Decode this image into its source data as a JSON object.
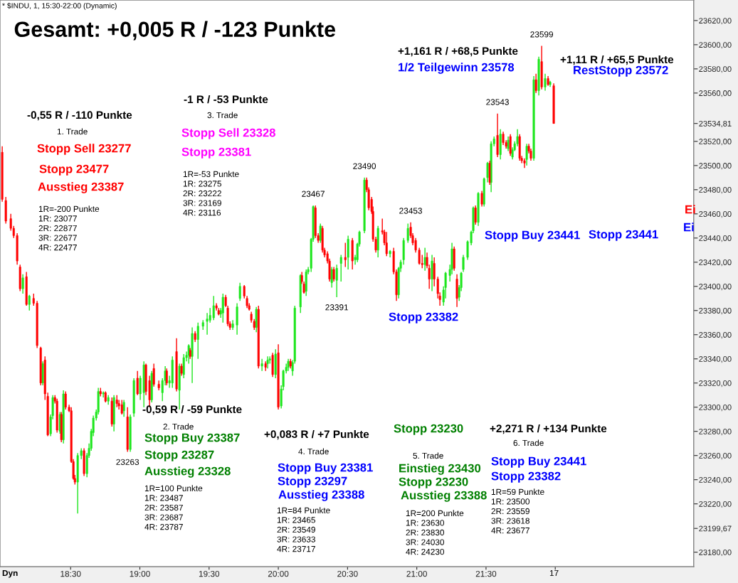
{
  "chart_data": {
    "type": "candlestick",
    "title": "Gesamt: +0,005 R / -123 Punkte",
    "subtitle": "* $INDU, 1, 15:30-22:00 (Dynamic)",
    "xlim": [
      17.99,
      23.0
    ],
    "ylim": [
      23168,
      23637
    ],
    "xticks": [
      {
        "value": 18.5,
        "label": "18:30"
      },
      {
        "value": 19,
        "label": "19:00"
      },
      {
        "value": 19.5,
        "label": "19:30"
      },
      {
        "value": 20,
        "label": "20:00"
      },
      {
        "value": 20.5,
        "label": "20:30"
      },
      {
        "value": 21,
        "label": "21:00"
      },
      {
        "value": 21.5,
        "label": "21:30"
      },
      {
        "value": 22,
        "label": null
      }
    ],
    "yticks": [
      {
        "value": 23180,
        "label": "23180,00"
      },
      {
        "value": 23199.67,
        "label": "23199,67"
      },
      {
        "value": 23220,
        "label": "23220,00"
      },
      {
        "value": 23240,
        "label": "23240,00"
      },
      {
        "value": 23260,
        "label": "23260,00"
      },
      {
        "value": 23280,
        "label": "23280,00"
      },
      {
        "value": 23300,
        "label": "23300,00"
      },
      {
        "value": 23320,
        "label": "23320,00"
      },
      {
        "value": 23340,
        "label": "23340,00"
      },
      {
        "value": 23360,
        "label": "23360,00"
      },
      {
        "value": 23380,
        "label": "23380,00"
      },
      {
        "value": 23400,
        "label": "23400,00"
      },
      {
        "value": 23420,
        "label": "23420,00"
      },
      {
        "value": 23440,
        "label": "23440,00"
      },
      {
        "value": 23460,
        "label": "23460,00"
      },
      {
        "value": 23480,
        "label": "23480,00"
      },
      {
        "value": 23500,
        "label": "23500,00"
      },
      {
        "value": 23520,
        "label": "23520,00"
      },
      {
        "value": 23534.81,
        "label": "23534,81"
      },
      {
        "value": 23560,
        "label": "23560,00"
      },
      {
        "value": 23580,
        "label": "23580,00"
      },
      {
        "value": 23600,
        "label": "23600,00"
      },
      {
        "value": 23620,
        "label": "23620,00"
      }
    ],
    "series": [
      {
        "color": "#1ee61e",
        "x": [
          18.155,
          18.202,
          18.299,
          18.356,
          18.371,
          18.423,
          18.448,
          18.551,
          18.577,
          18.618,
          18.633,
          18.649,
          18.664,
          18.685,
          18.7,
          18.736,
          18.772,
          18.813,
          18.885,
          18.931,
          18.957,
          19.003,
          19.029,
          19.086,
          19.163,
          19.183,
          19.214,
          19.235,
          19.286,
          19.317,
          19.337,
          19.353,
          19.378,
          19.42,
          19.456,
          19.486,
          19.507,
          19.533,
          19.584,
          19.6,
          19.671,
          19.702,
          19.723,
          19.841,
          19.882,
          19.923,
          19.939,
          19.98,
          20.021,
          20.036,
          20.057,
          20.072,
          20.103,
          20.119,
          20.16,
          20.201,
          20.216,
          20.237,
          20.252,
          20.304,
          20.386,
          20.422,
          20.453,
          20.504,
          20.555,
          20.571,
          20.586,
          20.622,
          20.72,
          20.807,
          20.869,
          20.884,
          20.905,
          20.936,
          21.059,
          21.11,
          21.193,
          21.208,
          21.239,
          21.254,
          21.306,
          21.321,
          21.336,
          21.367,
          21.393,
          21.408,
          21.444,
          21.486,
          21.511,
          21.537,
          21.558,
          21.604,
          21.66,
          21.691,
          21.707,
          21.727,
          21.794,
          21.845,
          21.881,
          21.927,
          21.963
        ],
        "ohlc": [
          [
            23398,
            23410,
            23394,
            23407
          ],
          [
            23385,
            23393,
            23380,
            23392
          ],
          [
            23320,
            23338,
            23318,
            23336
          ],
          [
            23278,
            23294,
            23276,
            23292
          ],
          [
            23293,
            23310,
            23290,
            23308
          ],
          [
            23280,
            23296,
            23278,
            23294
          ],
          [
            23273,
            23314,
            23270,
            23311
          ],
          [
            23238,
            23262,
            23212,
            23260
          ],
          [
            23260,
            23266,
            23257,
            23264
          ],
          [
            23245,
            23262,
            23242,
            23260
          ],
          [
            23260,
            23270,
            23258,
            23266
          ],
          [
            23266,
            23282,
            23264,
            23280
          ],
          [
            23279,
            23293,
            23276,
            23291
          ],
          [
            23291,
            23298,
            23289,
            23296
          ],
          [
            23296,
            23316,
            23294,
            23313
          ],
          [
            23311,
            23313,
            23308,
            23312
          ],
          [
            23305,
            23310,
            23302,
            23308
          ],
          [
            23286,
            23310,
            23280,
            23308
          ],
          [
            23297,
            23306,
            23292,
            23304
          ],
          [
            23265,
            23294,
            23263,
            23292
          ],
          [
            23295,
            23324,
            23292,
            23322
          ],
          [
            23311,
            23326,
            23306,
            23324
          ],
          [
            23312,
            23338,
            23300,
            23335
          ],
          [
            23306,
            23330,
            23304,
            23328
          ],
          [
            23312,
            23324,
            23305,
            23322
          ],
          [
            23322,
            23334,
            23318,
            23330
          ],
          [
            23320,
            23326,
            23316,
            23322
          ],
          [
            23320,
            23342,
            23316,
            23339
          ],
          [
            23314,
            23336,
            23298,
            23334
          ],
          [
            23327,
            23344,
            23324,
            23341
          ],
          [
            23341,
            23346,
            23338,
            23343
          ],
          [
            23343,
            23352,
            23336,
            23351
          ],
          [
            23342,
            23366,
            23320,
            23361
          ],
          [
            23356,
            23370,
            23340,
            23367
          ],
          [
            23367,
            23372,
            23364,
            23370
          ],
          [
            23371,
            23378,
            23360,
            23373
          ],
          [
            23372,
            23382,
            23370,
            23376
          ],
          [
            23374,
            23392,
            23372,
            23384
          ],
          [
            23377,
            23382,
            23374,
            23380
          ],
          [
            23378,
            23394,
            23370,
            23391
          ],
          [
            23366,
            23372,
            23364,
            23369
          ],
          [
            23368,
            23386,
            23360,
            23383
          ],
          [
            23390,
            23403,
            23388,
            23400
          ],
          [
            23366,
            23383,
            23362,
            23381
          ],
          [
            23334,
            23340,
            23330,
            23336
          ],
          [
            23336,
            23342,
            23332,
            23339
          ],
          [
            23339,
            23342,
            23336,
            23340
          ],
          [
            23327,
            23348,
            23324,
            23344
          ],
          [
            23301,
            23318,
            23299,
            23315
          ],
          [
            23317,
            23331,
            23314,
            23330
          ],
          [
            23330,
            23336,
            23328,
            23333
          ],
          [
            23333,
            23340,
            23330,
            23338
          ],
          [
            23330,
            23339,
            23326,
            23337
          ],
          [
            23338,
            23384,
            23336,
            23382
          ],
          [
            23383,
            23410,
            23378,
            23409
          ],
          [
            23396,
            23414,
            23392,
            23412
          ],
          [
            23412,
            23416,
            23410,
            23414
          ],
          [
            23415,
            23440,
            23412,
            23439
          ],
          [
            23439,
            23467,
            23437,
            23466
          ],
          [
            23438,
            23452,
            23436,
            23450
          ],
          [
            23403,
            23416,
            23399,
            23414
          ],
          [
            23405,
            23418,
            23391,
            23415
          ],
          [
            23419,
            23426,
            23404,
            23424
          ],
          [
            23424,
            23442,
            23414,
            23439
          ],
          [
            23422,
            23426,
            23418,
            23424
          ],
          [
            23422,
            23436,
            23420,
            23435
          ],
          [
            23435,
            23446,
            23433,
            23445
          ],
          [
            23446,
            23490,
            23444,
            23488
          ],
          [
            23430,
            23450,
            23424,
            23448
          ],
          [
            23427,
            23430,
            23424,
            23429
          ],
          [
            23393,
            23416,
            23390,
            23415
          ],
          [
            23415,
            23422,
            23412,
            23420
          ],
          [
            23422,
            23440,
            23418,
            23438
          ],
          [
            23438,
            23452,
            23436,
            23448
          ],
          [
            23418,
            23432,
            23413,
            23424
          ],
          [
            23406,
            23426,
            23396,
            23421
          ],
          [
            23387,
            23400,
            23384,
            23397
          ],
          [
            23399,
            23412,
            23390,
            23411
          ],
          [
            23409,
            23418,
            23404,
            23414
          ],
          [
            23414,
            23436,
            23410,
            23431
          ],
          [
            23391,
            23401,
            23388,
            23399
          ],
          [
            23399,
            23412,
            23396,
            23411
          ],
          [
            23414,
            23426,
            23412,
            23424
          ],
          [
            23424,
            23438,
            23422,
            23437
          ],
          [
            23436,
            23446,
            23434,
            23445
          ],
          [
            23446,
            23466,
            23444,
            23465
          ],
          [
            23453,
            23478,
            23450,
            23477
          ],
          [
            23468,
            23490,
            23466,
            23489
          ],
          [
            23490,
            23503,
            23486,
            23502
          ],
          [
            23486,
            23520,
            23478,
            23518
          ],
          [
            23518,
            23524,
            23516,
            23522
          ],
          [
            23509,
            23530,
            23505,
            23526
          ],
          [
            23514,
            23524,
            23512,
            23521
          ],
          [
            23507,
            23515,
            23505,
            23513
          ],
          [
            23513,
            23520,
            23512,
            23518
          ],
          [
            23518,
            23530,
            23516,
            23524
          ],
          [
            23505,
            23518,
            23500,
            23516
          ],
          [
            23506,
            23574,
            23504,
            23571
          ],
          [
            23562,
            23590,
            23558,
            23588
          ],
          [
            23565,
            23576,
            23562,
            23572
          ],
          [
            23567,
            23570,
            23565,
            23569
          ]
        ]
      },
      {
        "color": "#ff0000",
        "x": [
          18.006,
          18.032,
          18.068,
          18.089,
          18.114,
          18.135,
          18.181,
          18.233,
          18.258,
          18.284,
          18.315,
          18.335,
          18.387,
          18.402,
          18.433,
          18.464,
          18.489,
          18.505,
          18.52,
          18.531,
          18.597,
          18.716,
          18.752,
          18.798,
          18.834,
          18.849,
          18.87,
          18.911,
          18.983,
          19.044,
          19.07,
          19.101,
          19.137,
          19.194,
          19.265,
          19.301,
          19.363,
          19.399,
          19.553,
          19.569,
          19.62,
          19.635,
          19.651,
          19.754,
          19.774,
          19.79,
          19.805,
          19.826,
          19.857,
          19.908,
          19.959,
          20.0,
          20.088,
          20.17,
          20.185,
          20.268,
          20.288,
          20.319,
          20.334,
          20.355,
          20.37,
          20.401,
          20.484,
          20.535,
          20.638,
          20.653,
          20.674,
          20.684,
          20.704,
          20.751,
          20.766,
          20.782,
          20.833,
          20.853,
          20.956,
          20.971,
          20.992,
          21.018,
          21.039,
          21.074,
          21.09,
          21.126,
          21.152,
          21.167,
          21.27,
          21.29,
          21.424,
          21.47,
          21.527,
          21.583,
          21.624,
          21.645,
          21.676,
          21.743,
          21.758,
          21.778,
          21.809,
          21.824,
          21.861,
          21.902,
          21.948,
          21.989
        ],
        "ohlc": [
          [
            23511,
            23516,
            23470,
            23472
          ],
          [
            23471,
            23474,
            23452,
            23454
          ],
          [
            23456,
            23460,
            23446,
            23448
          ],
          [
            23448,
            23450,
            23440,
            23442
          ],
          [
            23442,
            23444,
            23418,
            23421
          ],
          [
            23416,
            23418,
            23396,
            23398
          ],
          [
            23408,
            23412,
            23384,
            23385
          ],
          [
            23390,
            23394,
            23384,
            23386
          ],
          [
            23386,
            23388,
            23349,
            23351
          ],
          [
            23349,
            23350,
            23318,
            23320
          ],
          [
            23339,
            23342,
            23306,
            23311
          ],
          [
            23309,
            23312,
            23276,
            23277
          ],
          [
            23308,
            23310,
            23303,
            23305
          ],
          [
            23305,
            23307,
            23279,
            23281
          ],
          [
            23294,
            23296,
            23271,
            23273
          ],
          [
            23311,
            23313,
            23298,
            23300
          ],
          [
            23300,
            23302,
            23296,
            23297
          ],
          [
            23297,
            23300,
            23254,
            23255
          ],
          [
            23255,
            23257,
            23240,
            23241
          ],
          [
            23241,
            23244,
            23236,
            23238
          ],
          [
            23264,
            23266,
            23243,
            23245
          ],
          [
            23313,
            23316,
            23309,
            23311
          ],
          [
            23312,
            23313,
            23304,
            23305
          ],
          [
            23305,
            23308,
            23284,
            23286
          ],
          [
            23306,
            23310,
            23300,
            23303
          ],
          [
            23303,
            23306,
            23298,
            23301
          ],
          [
            23302,
            23306,
            23294,
            23295
          ],
          [
            23292,
            23300,
            23263,
            23265
          ],
          [
            23324,
            23330,
            23310,
            23311
          ],
          [
            23335,
            23336,
            23310,
            23313
          ],
          [
            23322,
            23326,
            23300,
            23306
          ],
          [
            23332,
            23336,
            23317,
            23319
          ],
          [
            23319,
            23322,
            23314,
            23316
          ],
          [
            23330,
            23332,
            23318,
            23320
          ],
          [
            23346,
            23357,
            23313,
            23315
          ],
          [
            23334,
            23336,
            23326,
            23328
          ],
          [
            23347,
            23349,
            23340,
            23342
          ],
          [
            23361,
            23363,
            23354,
            23356
          ],
          [
            23384,
            23386,
            23380,
            23382
          ],
          [
            23380,
            23382,
            23376,
            23377
          ],
          [
            23391,
            23393,
            23383,
            23384
          ],
          [
            23382,
            23384,
            23367,
            23369
          ],
          [
            23369,
            23371,
            23364,
            23366
          ],
          [
            23400,
            23401,
            23390,
            23392
          ],
          [
            23390,
            23392,
            23382,
            23384
          ],
          [
            23384,
            23386,
            23380,
            23381
          ],
          [
            23377,
            23379,
            23370,
            23372
          ],
          [
            23371,
            23373,
            23364,
            23366
          ],
          [
            23381,
            23384,
            23332,
            23334
          ],
          [
            23336,
            23338,
            23330,
            23333
          ],
          [
            23343,
            23345,
            23325,
            23327
          ],
          [
            23345,
            23352,
            23298,
            23300
          ],
          [
            23338,
            23340,
            23332,
            23334
          ],
          [
            23409,
            23412,
            23402,
            23404
          ],
          [
            23402,
            23404,
            23394,
            23395
          ],
          [
            23465,
            23467,
            23440,
            23442
          ],
          [
            23442,
            23444,
            23436,
            23438
          ],
          [
            23448,
            23450,
            23428,
            23430
          ],
          [
            23430,
            23432,
            23424,
            23426
          ],
          [
            23427,
            23429,
            23419,
            23421
          ],
          [
            23421,
            23423,
            23404,
            23406
          ],
          [
            23414,
            23416,
            23404,
            23406
          ],
          [
            23424,
            23436,
            23416,
            23422
          ],
          [
            23438,
            23440,
            23414,
            23421
          ],
          [
            23488,
            23490,
            23478,
            23480
          ],
          [
            23480,
            23482,
            23463,
            23465
          ],
          [
            23472,
            23474,
            23460,
            23462
          ],
          [
            23462,
            23466,
            23437,
            23439
          ],
          [
            23439,
            23441,
            23428,
            23430
          ],
          [
            23446,
            23456,
            23443,
            23445
          ],
          [
            23445,
            23447,
            23434,
            23436
          ],
          [
            23436,
            23445,
            23425,
            23427
          ],
          [
            23429,
            23432,
            23410,
            23412
          ],
          [
            23412,
            23414,
            23388,
            23393
          ],
          [
            23449,
            23453,
            23440,
            23442
          ],
          [
            23442,
            23444,
            23434,
            23436
          ],
          [
            23438,
            23440,
            23428,
            23430
          ],
          [
            23430,
            23432,
            23418,
            23419
          ],
          [
            23419,
            23426,
            23415,
            23418
          ],
          [
            23424,
            23428,
            23415,
            23417
          ],
          [
            23415,
            23418,
            23398,
            23406
          ],
          [
            23419,
            23424,
            23400,
            23406
          ],
          [
            23406,
            23408,
            23390,
            23394
          ],
          [
            23392,
            23395,
            23384,
            23389
          ],
          [
            23431,
            23433,
            23413,
            23415
          ],
          [
            23406,
            23410,
            23383,
            23390
          ],
          [
            23465,
            23467,
            23451,
            23453
          ],
          [
            23477,
            23479,
            23466,
            23468
          ],
          [
            23502,
            23504,
            23484,
            23486
          ],
          [
            23525,
            23543,
            23507,
            23509
          ],
          [
            23526,
            23528,
            23517,
            23519
          ],
          [
            23519,
            23521,
            23514,
            23516
          ],
          [
            23524,
            23526,
            23508,
            23510
          ],
          [
            23524,
            23526,
            23504,
            23506
          ],
          [
            23506,
            23508,
            23502,
            23504
          ],
          [
            23504,
            23506,
            23498,
            23502
          ],
          [
            23516,
            23518,
            23510,
            23512
          ],
          [
            23512,
            23514,
            23504,
            23506
          ],
          [
            23571,
            23576,
            23560,
            23562
          ],
          [
            23586,
            23599,
            23563,
            23565
          ],
          [
            23572,
            23574,
            23566,
            23567
          ],
          [
            23566,
            23568,
            23534.81,
            23534.81
          ]
        ]
      }
    ],
    "annotations": [
      "-0,55 R / -110 Punkte",
      "1. Trade",
      "Stopp Sell 23277",
      "Stopp 23477",
      "Ausstieg 23387",
      "1R=-200 Punkte\n1R: 23077\n2R: 22877\n3R: 22677\n4R: 22477",
      "-1 R / -53 Punkte",
      "3. Trade",
      "Stopp Sell 23328",
      "Stopp 23381",
      "1R=-53 Punkte\n1R: 23275\n2R: 23222\n3R: 23169\n4R: 23116",
      "Stopp 23382",
      "+1,161 R / +68,5 Punkte",
      "1/2 Teilgewinn 23578",
      "+1,11 R / +65,5 Punkte",
      "RestStopp 23572",
      "Stopp Buy 23441",
      "Stopp 23441",
      "Ei",
      "Ei",
      "-0,59 R / -59 Punkte",
      "2. Trade",
      "Stopp Buy 23387",
      "Stopp 23287",
      "Ausstieg 23328",
      "1R=100 Punkte\n1R: 23487\n2R: 23587\n3R: 23687\n4R: 23787",
      "+0,083 R / +7 Punkte",
      "4. Trade",
      "Stopp Buy 23381",
      "Stopp 23297",
      "Ausstieg 23388",
      "1R=84 Punkte\n1R: 23465\n2R: 23549\n3R: 23633\n4R: 23717",
      "Stopp 23230",
      "5. Trade",
      "Einstieg 23430",
      "Stopp 23230",
      "Ausstieg 23388",
      "1R=200 Punkte\n1R: 23630\n2R: 23830\n3R: 24030\n4R: 24230",
      "+2,271 R / +134 Punkte",
      "6. Trade",
      "Stopp Buy 23441",
      "Stopp 23382",
      "1R=59 Punkte\n1R: 23500\n2R: 23559\n3R: 23618\n4R: 23677",
      "Dyn",
      "17",
      {
        "text": "23467",
        "x": 20.252,
        "y": 23467
      },
      {
        "text": "23490",
        "x": 20.622,
        "y": 23490
      },
      {
        "text": "23391",
        "x": 20.422,
        "y": 23391
      },
      {
        "text": "23453",
        "x": 20.956,
        "y": 23453
      },
      {
        "text": "23543",
        "x": 21.583,
        "y": 23543
      },
      {
        "text": "23599",
        "x": 21.902,
        "y": 23599
      },
      {
        "text": "23263",
        "x": 18.911,
        "y": 23263
      }
    ]
  }
}
